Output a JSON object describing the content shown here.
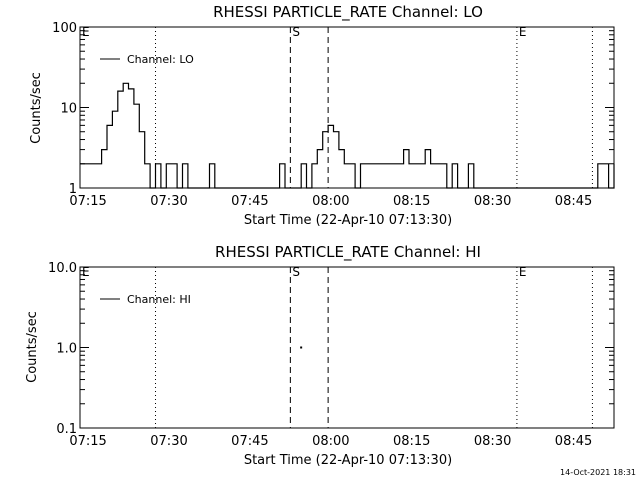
{
  "chart_data": [
    {
      "type": "line",
      "title": "RHESSI PARTICLE_RATE Channel: LO",
      "xlabel": "Start Time (22-Apr-10 07:13:30)",
      "ylabel": "Counts/sec",
      "yscale": "log",
      "xlim": [
        0,
        99
      ],
      "ylim": [
        1,
        100
      ],
      "xtick_values": [
        1.5,
        16.5,
        31.5,
        46.5,
        61.5,
        76.5,
        91.5
      ],
      "xtick_labels": [
        "07:15",
        "07:30",
        "07:45",
        "08:00",
        "08:15",
        "08:30",
        "08:45"
      ],
      "ytick_values": [
        1,
        10,
        100
      ],
      "ytick_labels": [
        "1",
        "10",
        "100"
      ],
      "series": [
        {
          "name": "Channel: LO",
          "x": [
            0,
            1,
            2,
            3,
            4,
            5,
            6,
            7,
            8,
            9,
            10,
            11,
            12,
            13,
            14,
            15,
            16,
            17,
            18,
            19,
            20,
            21,
            22,
            23,
            24,
            25,
            26,
            27,
            28,
            29,
            30,
            31,
            32,
            33,
            34,
            35,
            36,
            37,
            38,
            39,
            40,
            41,
            42,
            43,
            44,
            45,
            46,
            47,
            48,
            49,
            50,
            51,
            52,
            53,
            54,
            55,
            56,
            57,
            58,
            59,
            60,
            61,
            62,
            63,
            64,
            65,
            66,
            67,
            68,
            69,
            70,
            71,
            72,
            73,
            74,
            75,
            76,
            77,
            78,
            79,
            80,
            81,
            82,
            83,
            84,
            85,
            86,
            87,
            88,
            89,
            90,
            91,
            92,
            93,
            94,
            95,
            96,
            97,
            98,
            99
          ],
          "y": [
            2,
            2,
            2,
            2,
            3,
            6,
            9,
            16,
            20,
            17,
            11,
            5,
            2,
            1,
            2,
            1,
            2,
            2,
            1,
            2,
            1,
            1,
            1,
            1,
            2,
            1,
            1,
            1,
            1,
            1,
            1,
            1,
            1,
            1,
            1,
            1,
            1,
            2,
            1,
            1,
            1,
            2,
            1,
            2,
            3,
            5,
            6,
            5,
            3,
            2,
            2,
            1,
            2,
            2,
            2,
            2,
            2,
            2,
            2,
            2,
            3,
            2,
            2,
            2,
            3,
            2,
            2,
            2,
            1,
            2,
            1,
            1,
            2,
            1,
            1,
            1,
            1,
            1,
            1,
            1,
            1,
            1,
            1,
            1,
            1,
            1,
            1,
            1,
            1,
            1,
            1,
            1,
            1,
            1,
            1,
            1,
            2,
            2,
            1,
            2
          ]
        }
      ],
      "markers": [
        {
          "label": "E",
          "x": 0,
          "style": "dotted"
        },
        {
          "label": "",
          "x": 14,
          "style": "dotted"
        },
        {
          "label": "S",
          "x": 39,
          "style": "dashed"
        },
        {
          "label": "",
          "x": 46,
          "style": "dashed"
        },
        {
          "label": "E",
          "x": 81,
          "style": "dotted"
        },
        {
          "label": "",
          "x": 95,
          "style": "dotted"
        }
      ],
      "legend": "top-left",
      "grid": false
    },
    {
      "type": "line",
      "title": "RHESSI PARTICLE_RATE Channel: HI",
      "xlabel": "Start Time (22-Apr-10 07:13:30)",
      "ylabel": "Counts/sec",
      "yscale": "log",
      "xlim": [
        0,
        99
      ],
      "ylim": [
        0.1,
        10
      ],
      "xtick_values": [
        1.5,
        16.5,
        31.5,
        46.5,
        61.5,
        76.5,
        91.5
      ],
      "xtick_labels": [
        "07:15",
        "07:30",
        "07:45",
        "08:00",
        "08:15",
        "08:30",
        "08:45"
      ],
      "ytick_values": [
        0.1,
        1,
        10
      ],
      "ytick_labels": [
        "0.1",
        "1.0",
        "10.0"
      ],
      "series": [
        {
          "name": "Channel: HI",
          "x": [
            41
          ],
          "y": [
            1
          ]
        }
      ],
      "markers": [
        {
          "label": "E",
          "x": 0,
          "style": "dotted"
        },
        {
          "label": "",
          "x": 14,
          "style": "dotted"
        },
        {
          "label": "S",
          "x": 39,
          "style": "dashed"
        },
        {
          "label": "",
          "x": 46,
          "style": "dashed"
        },
        {
          "label": "E",
          "x": 81,
          "style": "dotted"
        },
        {
          "label": "",
          "x": 95,
          "style": "dotted"
        }
      ],
      "legend": "top-left",
      "grid": false
    }
  ],
  "footer": {
    "timestamp": "14-Oct-2021 18:31"
  }
}
